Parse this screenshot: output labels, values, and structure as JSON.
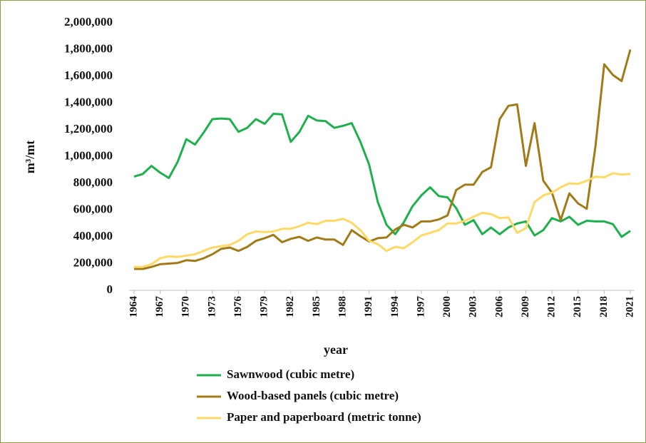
{
  "chart_data": {
    "type": "line",
    "x_label": "year",
    "y_label": "m³/mt",
    "x": [
      1964,
      1965,
      1966,
      1967,
      1968,
      1969,
      1970,
      1971,
      1972,
      1973,
      1974,
      1975,
      1976,
      1977,
      1978,
      1979,
      1980,
      1981,
      1982,
      1983,
      1984,
      1985,
      1986,
      1987,
      1988,
      1989,
      1990,
      1991,
      1992,
      1993,
      1994,
      1995,
      1996,
      1997,
      1998,
      1999,
      2000,
      2001,
      2002,
      2003,
      2004,
      2005,
      2006,
      2007,
      2008,
      2009,
      2010,
      2011,
      2012,
      2013,
      2014,
      2015,
      2016,
      2017,
      2018,
      2019,
      2020,
      2021
    ],
    "series": [
      {
        "name": "Sawnwood (cubic metre)",
        "color": "#1fb04e",
        "values": [
          850000,
          870000,
          930000,
          880000,
          840000,
          960000,
          1130000,
          1090000,
          1180000,
          1280000,
          1285000,
          1280000,
          1185000,
          1215000,
          1280000,
          1245000,
          1320000,
          1315000,
          1110000,
          1185000,
          1305000,
          1270000,
          1265000,
          1215000,
          1230000,
          1250000,
          1110000,
          940000,
          660000,
          490000,
          420000,
          510000,
          630000,
          710000,
          770000,
          705000,
          695000,
          615000,
          490000,
          525000,
          420000,
          470000,
          420000,
          470000,
          500000,
          515000,
          410000,
          450000,
          540000,
          515000,
          550000,
          490000,
          520000,
          515000,
          515000,
          495000,
          400000,
          445000
        ]
      },
      {
        "name": "Wood-based panels (cubic metre)",
        "color": "#a07b17",
        "values": [
          160000,
          160000,
          175000,
          195000,
          200000,
          205000,
          225000,
          220000,
          240000,
          270000,
          310000,
          320000,
          295000,
          325000,
          370000,
          390000,
          415000,
          360000,
          385000,
          400000,
          370000,
          395000,
          380000,
          380000,
          340000,
          450000,
          405000,
          365000,
          390000,
          395000,
          455000,
          490000,
          470000,
          515000,
          515000,
          530000,
          560000,
          750000,
          790000,
          790000,
          885000,
          920000,
          1280000,
          1380000,
          1390000,
          930000,
          1250000,
          820000,
          730000,
          525000,
          725000,
          650000,
          610000,
          1080000,
          1690000,
          1610000,
          1565000,
          1800000
        ]
      },
      {
        "name": "Paper and paperboard (metric tonne)",
        "color": "#ffd966",
        "values": [
          175000,
          175000,
          195000,
          240000,
          255000,
          250000,
          260000,
          270000,
          295000,
          320000,
          330000,
          340000,
          370000,
          420000,
          440000,
          435000,
          440000,
          460000,
          460000,
          480000,
          505000,
          495000,
          520000,
          520000,
          535000,
          505000,
          450000,
          370000,
          345000,
          295000,
          325000,
          315000,
          360000,
          410000,
          430000,
          450000,
          500000,
          500000,
          520000,
          550000,
          580000,
          570000,
          540000,
          545000,
          430000,
          465000,
          660000,
          710000,
          730000,
          770000,
          800000,
          795000,
          820000,
          850000,
          845000,
          875000,
          865000,
          870000
        ]
      }
    ],
    "xlim": [
      1964,
      2021
    ],
    "xticks": [
      1964,
      1967,
      1970,
      1973,
      1976,
      1979,
      1982,
      1985,
      1988,
      1991,
      1994,
      1997,
      2000,
      2003,
      2006,
      2009,
      2012,
      2015,
      2018,
      2021
    ],
    "ylim": [
      0,
      2000000
    ],
    "yticks": [
      0,
      {
        "value": 200000,
        "label": "200,000"
      },
      {
        "value": 400000,
        "label": "400,000"
      },
      {
        "value": 600000,
        "label": "600,000"
      },
      {
        "value": 800000,
        "label": "800,000"
      },
      {
        "value": 1000000,
        "label": "1,000,000"
      },
      {
        "value": 1200000,
        "label": "1,200,000"
      },
      {
        "value": 1400000,
        "label": "1,400,000"
      },
      {
        "value": 1600000,
        "label": "1,600,000"
      },
      {
        "value": 1800000,
        "label": "1,800,000"
      },
      {
        "value": 2000000,
        "label": "2,000,000"
      }
    ],
    "grid": false
  }
}
